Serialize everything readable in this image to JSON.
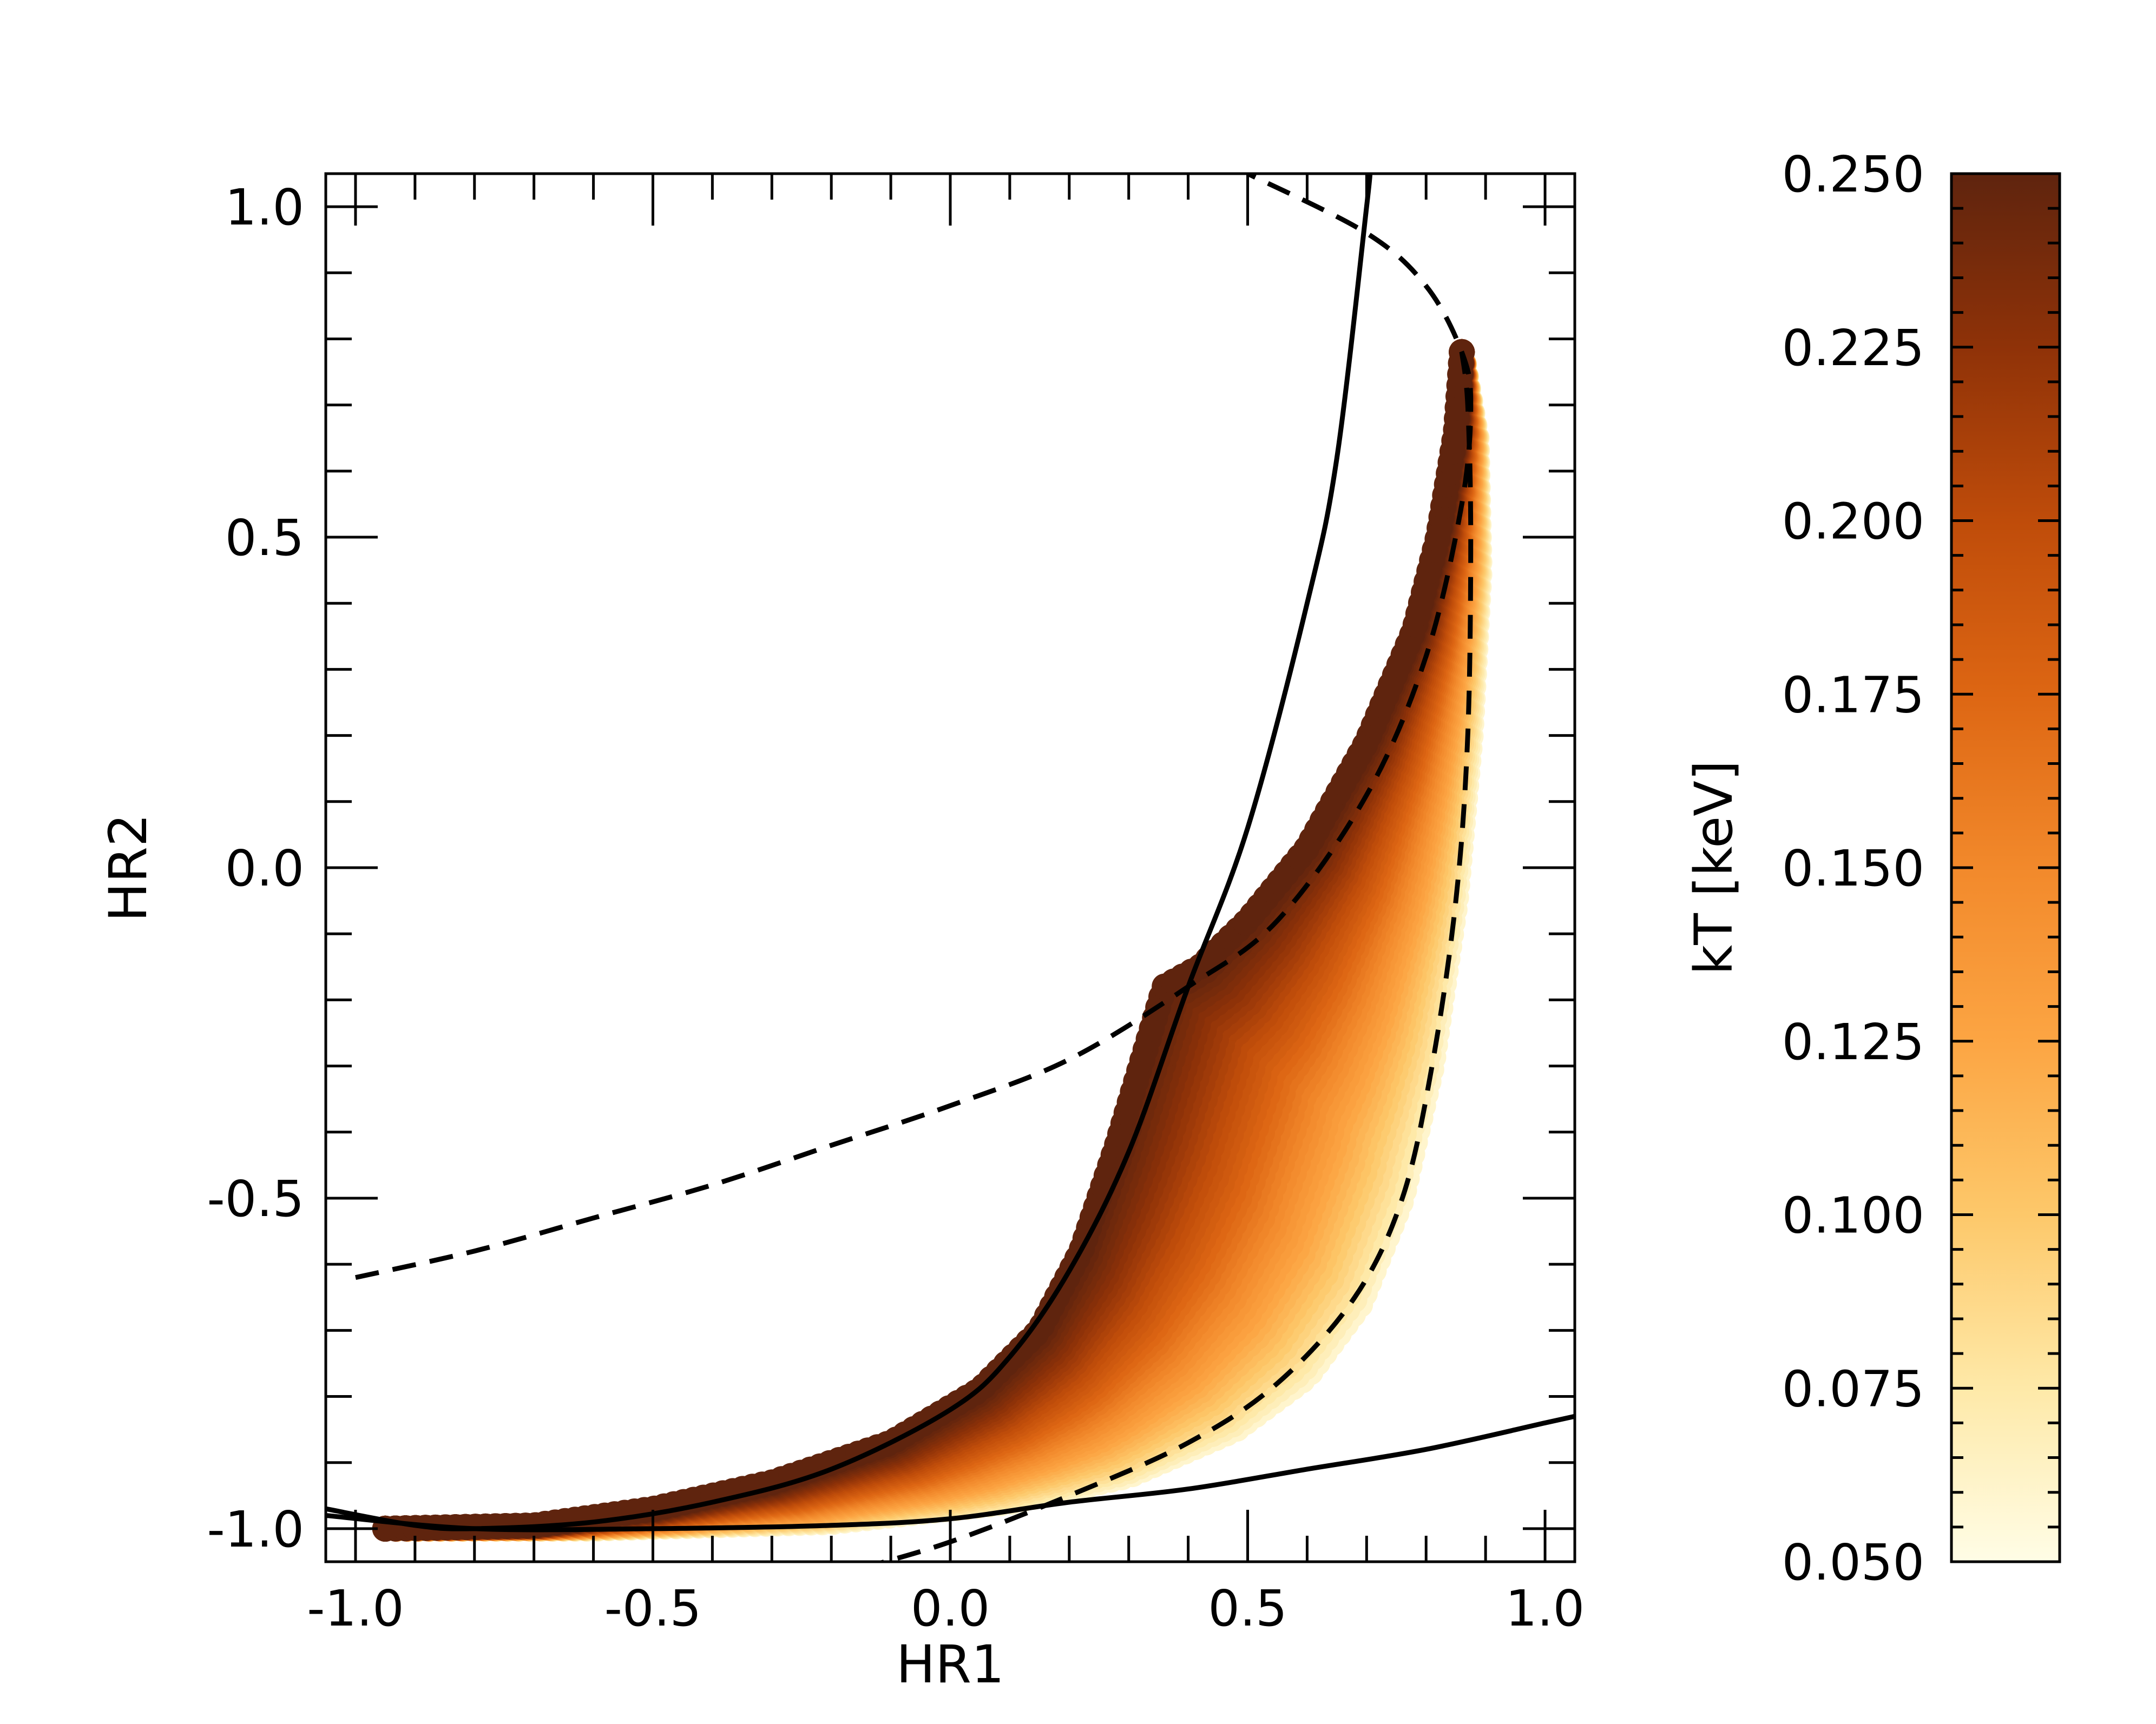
{
  "chart_data": {
    "type": "scatter",
    "xlabel": "HR1",
    "ylabel": "HR2",
    "xlim": [
      -1.05,
      1.05
    ],
    "ylim": [
      -1.05,
      1.05
    ],
    "x_ticks": [
      "-1.0",
      "-0.5",
      "0.0",
      "0.5",
      "1.0"
    ],
    "x_tick_values": [
      -1.0,
      -0.5,
      0.0,
      0.5,
      1.0
    ],
    "y_ticks": [
      "1.0",
      "0.5",
      "0.0",
      "-0.5",
      "-1.0"
    ],
    "y_tick_values": [
      1.0,
      0.5,
      0.0,
      -0.5,
      -1.0
    ],
    "minor_tick_step": 0.1,
    "grid": false,
    "colorbar": {
      "label": "kT [keV]",
      "range": [
        0.05,
        0.25
      ],
      "ticks": [
        "0.250",
        "0.225",
        "0.200",
        "0.175",
        "0.150",
        "0.125",
        "0.100",
        "0.075",
        "0.050"
      ],
      "tick_values": [
        0.25,
        0.225,
        0.2,
        0.175,
        0.15,
        0.125,
        0.1,
        0.075,
        0.05
      ],
      "minor_tick_step": 0.005,
      "colormap": [
        "#fffde6",
        "#fee9a8",
        "#fdc86a",
        "#fca543",
        "#f2892b",
        "#dd6613",
        "#bf4c0a",
        "#8f3208",
        "#5f240e"
      ]
    },
    "scatter_region": {
      "description_of_edges": "filled region of model points colored by kT",
      "upper_edge": [
        {
          "x": -0.95,
          "y": -1.0
        },
        {
          "x": -0.7,
          "y": -0.995
        },
        {
          "x": -0.5,
          "y": -0.97
        },
        {
          "x": -0.3,
          "y": -0.93
        },
        {
          "x": -0.1,
          "y": -0.87
        },
        {
          "x": 0.05,
          "y": -0.79
        },
        {
          "x": 0.15,
          "y": -0.7
        },
        {
          "x": 0.22,
          "y": -0.58
        },
        {
          "x": 0.28,
          "y": -0.42
        },
        {
          "x": 0.33,
          "y": -0.27
        },
        {
          "x": 0.36,
          "y": -0.18
        },
        {
          "x": 0.42,
          "y": -0.15
        },
        {
          "x": 0.5,
          "y": -0.08
        },
        {
          "x": 0.6,
          "y": 0.03
        },
        {
          "x": 0.7,
          "y": 0.19
        },
        {
          "x": 0.78,
          "y": 0.36
        },
        {
          "x": 0.82,
          "y": 0.5
        },
        {
          "x": 0.85,
          "y": 0.66
        },
        {
          "x": 0.86,
          "y": 0.78
        }
      ],
      "lower_edge": [
        {
          "x": 0.86,
          "y": 0.78
        },
        {
          "x": 0.885,
          "y": 0.65
        },
        {
          "x": 0.89,
          "y": 0.45
        },
        {
          "x": 0.875,
          "y": 0.2
        },
        {
          "x": 0.85,
          "y": -0.05
        },
        {
          "x": 0.81,
          "y": -0.3
        },
        {
          "x": 0.76,
          "y": -0.5
        },
        {
          "x": 0.69,
          "y": -0.66
        },
        {
          "x": 0.6,
          "y": -0.77
        },
        {
          "x": 0.48,
          "y": -0.85
        },
        {
          "x": 0.3,
          "y": -0.92
        },
        {
          "x": 0.1,
          "y": -0.96
        },
        {
          "x": -0.2,
          "y": -0.99
        },
        {
          "x": -0.6,
          "y": -1.0
        },
        {
          "x": -0.95,
          "y": -1.0
        }
      ],
      "color_gradient": "kT increases from low (0.05, pale yellow) near the lower-right edge to high (0.25, dark brown) along the upper-left edge"
    },
    "lines": [
      {
        "style": "solid",
        "points": [
          {
            "x": -1.05,
            "y": -0.97
          },
          {
            "x": -0.9,
            "y": -0.995
          },
          {
            "x": -0.8,
            "y": -1.0
          },
          {
            "x": -0.6,
            "y": -0.99
          },
          {
            "x": -0.4,
            "y": -0.96
          },
          {
            "x": -0.2,
            "y": -0.91
          },
          {
            "x": 0.0,
            "y": -0.82
          },
          {
            "x": 0.1,
            "y": -0.74
          },
          {
            "x": 0.2,
            "y": -0.61
          },
          {
            "x": 0.3,
            "y": -0.43
          },
          {
            "x": 0.4,
            "y": -0.18
          },
          {
            "x": 0.5,
            "y": 0.06
          },
          {
            "x": 0.6,
            "y": 0.4
          },
          {
            "x": 0.65,
            "y": 0.62
          },
          {
            "x": 0.7,
            "y": 1.0
          },
          {
            "x": 0.705,
            "y": 1.05
          }
        ]
      },
      {
        "style": "solid",
        "points": [
          {
            "x": -1.05,
            "y": -0.98
          },
          {
            "x": -0.8,
            "y": -1.0
          },
          {
            "x": -0.5,
            "y": -1.0
          },
          {
            "x": -0.2,
            "y": -0.995
          },
          {
            "x": 0.0,
            "y": -0.985
          },
          {
            "x": 0.2,
            "y": -0.96
          },
          {
            "x": 0.4,
            "y": -0.94
          },
          {
            "x": 0.6,
            "y": -0.91
          },
          {
            "x": 0.8,
            "y": -0.88
          },
          {
            "x": 1.0,
            "y": -0.84
          },
          {
            "x": 1.05,
            "y": -0.83
          }
        ]
      },
      {
        "style": "dashed",
        "points": [
          {
            "x": -1.0,
            "y": -0.62
          },
          {
            "x": -0.8,
            "y": -0.58
          },
          {
            "x": -0.6,
            "y": -0.53
          },
          {
            "x": -0.4,
            "y": -0.48
          },
          {
            "x": -0.2,
            "y": -0.42
          },
          {
            "x": 0.0,
            "y": -0.36
          },
          {
            "x": 0.2,
            "y": -0.29
          },
          {
            "x": 0.4,
            "y": -0.18
          },
          {
            "x": 0.55,
            "y": -0.08
          },
          {
            "x": 0.7,
            "y": 0.11
          },
          {
            "x": 0.8,
            "y": 0.32
          },
          {
            "x": 0.86,
            "y": 0.55
          },
          {
            "x": 0.875,
            "y": 0.7
          },
          {
            "x": 0.86,
            "y": 0.78
          },
          {
            "x": 0.8,
            "y": 0.88
          },
          {
            "x": 0.7,
            "y": 0.96
          },
          {
            "x": 0.5,
            "y": 1.05
          }
        ]
      },
      {
        "style": "dashed",
        "points": [
          {
            "x": -0.15,
            "y": -1.06
          },
          {
            "x": 0.0,
            "y": -1.02
          },
          {
            "x": 0.2,
            "y": -0.95
          },
          {
            "x": 0.4,
            "y": -0.87
          },
          {
            "x": 0.55,
            "y": -0.78
          },
          {
            "x": 0.68,
            "y": -0.65
          },
          {
            "x": 0.76,
            "y": -0.5
          },
          {
            "x": 0.81,
            "y": -0.3
          },
          {
            "x": 0.85,
            "y": -0.05
          },
          {
            "x": 0.87,
            "y": 0.2
          },
          {
            "x": 0.875,
            "y": 0.5
          },
          {
            "x": 0.87,
            "y": 0.7
          },
          {
            "x": 0.86,
            "y": 0.78
          }
        ]
      }
    ]
  }
}
